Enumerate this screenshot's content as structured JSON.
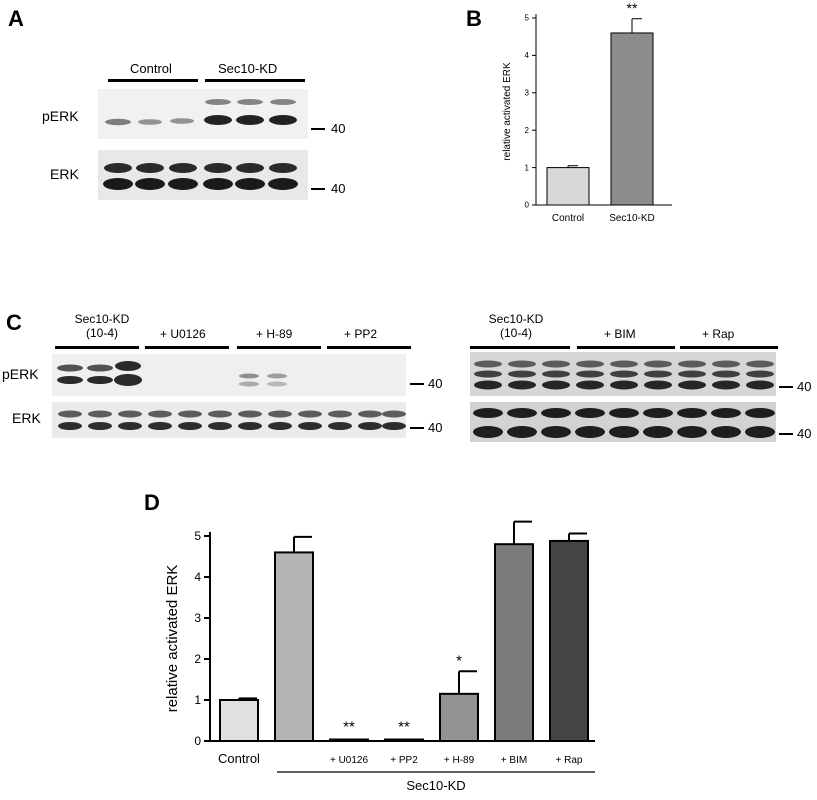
{
  "panels": {
    "a": "A",
    "b": "B",
    "c": "C",
    "d": "D"
  },
  "panel_a": {
    "groups": [
      "Control",
      "Sec10-KD"
    ],
    "rows": [
      "pERK",
      "ERK"
    ],
    "marker": "40"
  },
  "panel_c": {
    "left_groups": [
      "Sec10-KD\n(10-4)",
      "+ U0126",
      "+ H-89",
      "+ PP2"
    ],
    "right_groups": [
      "Sec10-KD\n(10-4)",
      "+ BIM",
      "+ Rap"
    ],
    "rows": [
      "pERK",
      "ERK"
    ],
    "marker": "40"
  },
  "chart_data": [
    {
      "type": "bar",
      "panel": "B",
      "categories": [
        "Control",
        "Sec10-KD"
      ],
      "values": [
        1.0,
        4.6
      ],
      "errors": [
        0.05,
        0.38
      ],
      "ylabel": "relative activated ERK",
      "ylim": [
        0,
        5
      ],
      "yticks": [
        0,
        1,
        2,
        3,
        4,
        5
      ],
      "annotations": [
        "",
        "**"
      ],
      "colors": [
        "#d8d8d8",
        "#8c8c8c"
      ]
    },
    {
      "type": "bar",
      "panel": "D",
      "categories": [
        "Control",
        "",
        "+ U0126",
        "+ PP2",
        "+ H-89",
        "+ BIM",
        "+ Rap"
      ],
      "values": [
        1.0,
        4.6,
        0.02,
        0.03,
        1.15,
        4.8,
        4.88
      ],
      "errors": [
        0.04,
        0.38,
        0.0,
        0.0,
        0.55,
        0.55,
        0.18
      ],
      "ylabel": "relative activated ERK",
      "ylim": [
        0,
        5
      ],
      "yticks": [
        0,
        1,
        2,
        3,
        4,
        5
      ],
      "annotations": [
        "",
        "",
        "**",
        "**",
        "*",
        "",
        ""
      ],
      "group_label": "Sec10-KD",
      "colors": [
        "#e0e0e0",
        "#b4b4b4",
        "#a0a0a0",
        "#a0a0a0",
        "#939393",
        "#7c7c7c",
        "#444444"
      ]
    }
  ]
}
